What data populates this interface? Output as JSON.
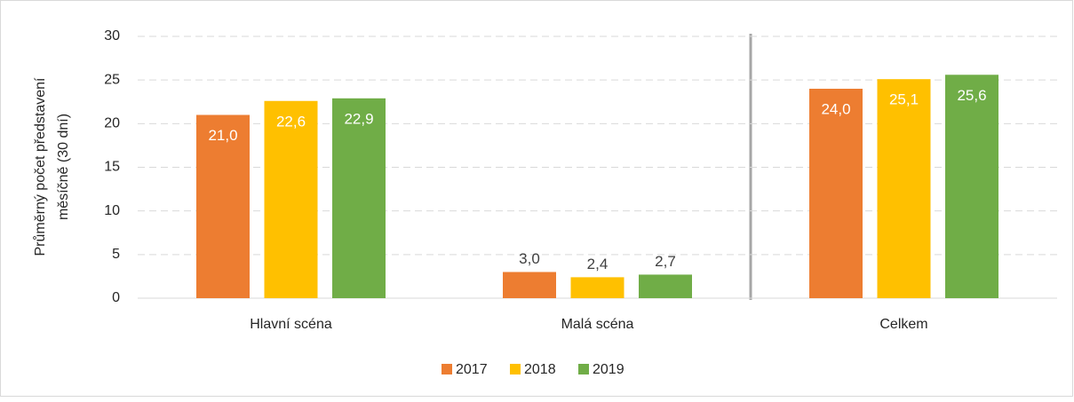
{
  "chart_data": {
    "type": "bar",
    "y_label": [
      "Průměrný počet představení",
      "měsíčně (30 dní)"
    ],
    "categories": [
      "Hlavní scéna",
      "Malá scéna",
      "Celkem"
    ],
    "series": [
      {
        "name": "2017",
        "color": "#ed7d31",
        "values": [
          21.0,
          3.0,
          24.0
        ],
        "value_labels": [
          "21,0",
          "3,0",
          "24,0"
        ]
      },
      {
        "name": "2018",
        "color": "#ffc000",
        "values": [
          22.6,
          2.4,
          25.1
        ],
        "value_labels": [
          "22,6",
          "2,4",
          "25,1"
        ]
      },
      {
        "name": "2019",
        "color": "#70ad47",
        "values": [
          22.9,
          2.7,
          25.6
        ],
        "value_labels": [
          "22,9",
          "2,7",
          "25,6"
        ]
      }
    ],
    "ylim": [
      0,
      30
    ],
    "yticks": [
      0,
      5,
      10,
      15,
      20,
      25,
      30
    ],
    "grid": true,
    "legend": "bottom"
  }
}
